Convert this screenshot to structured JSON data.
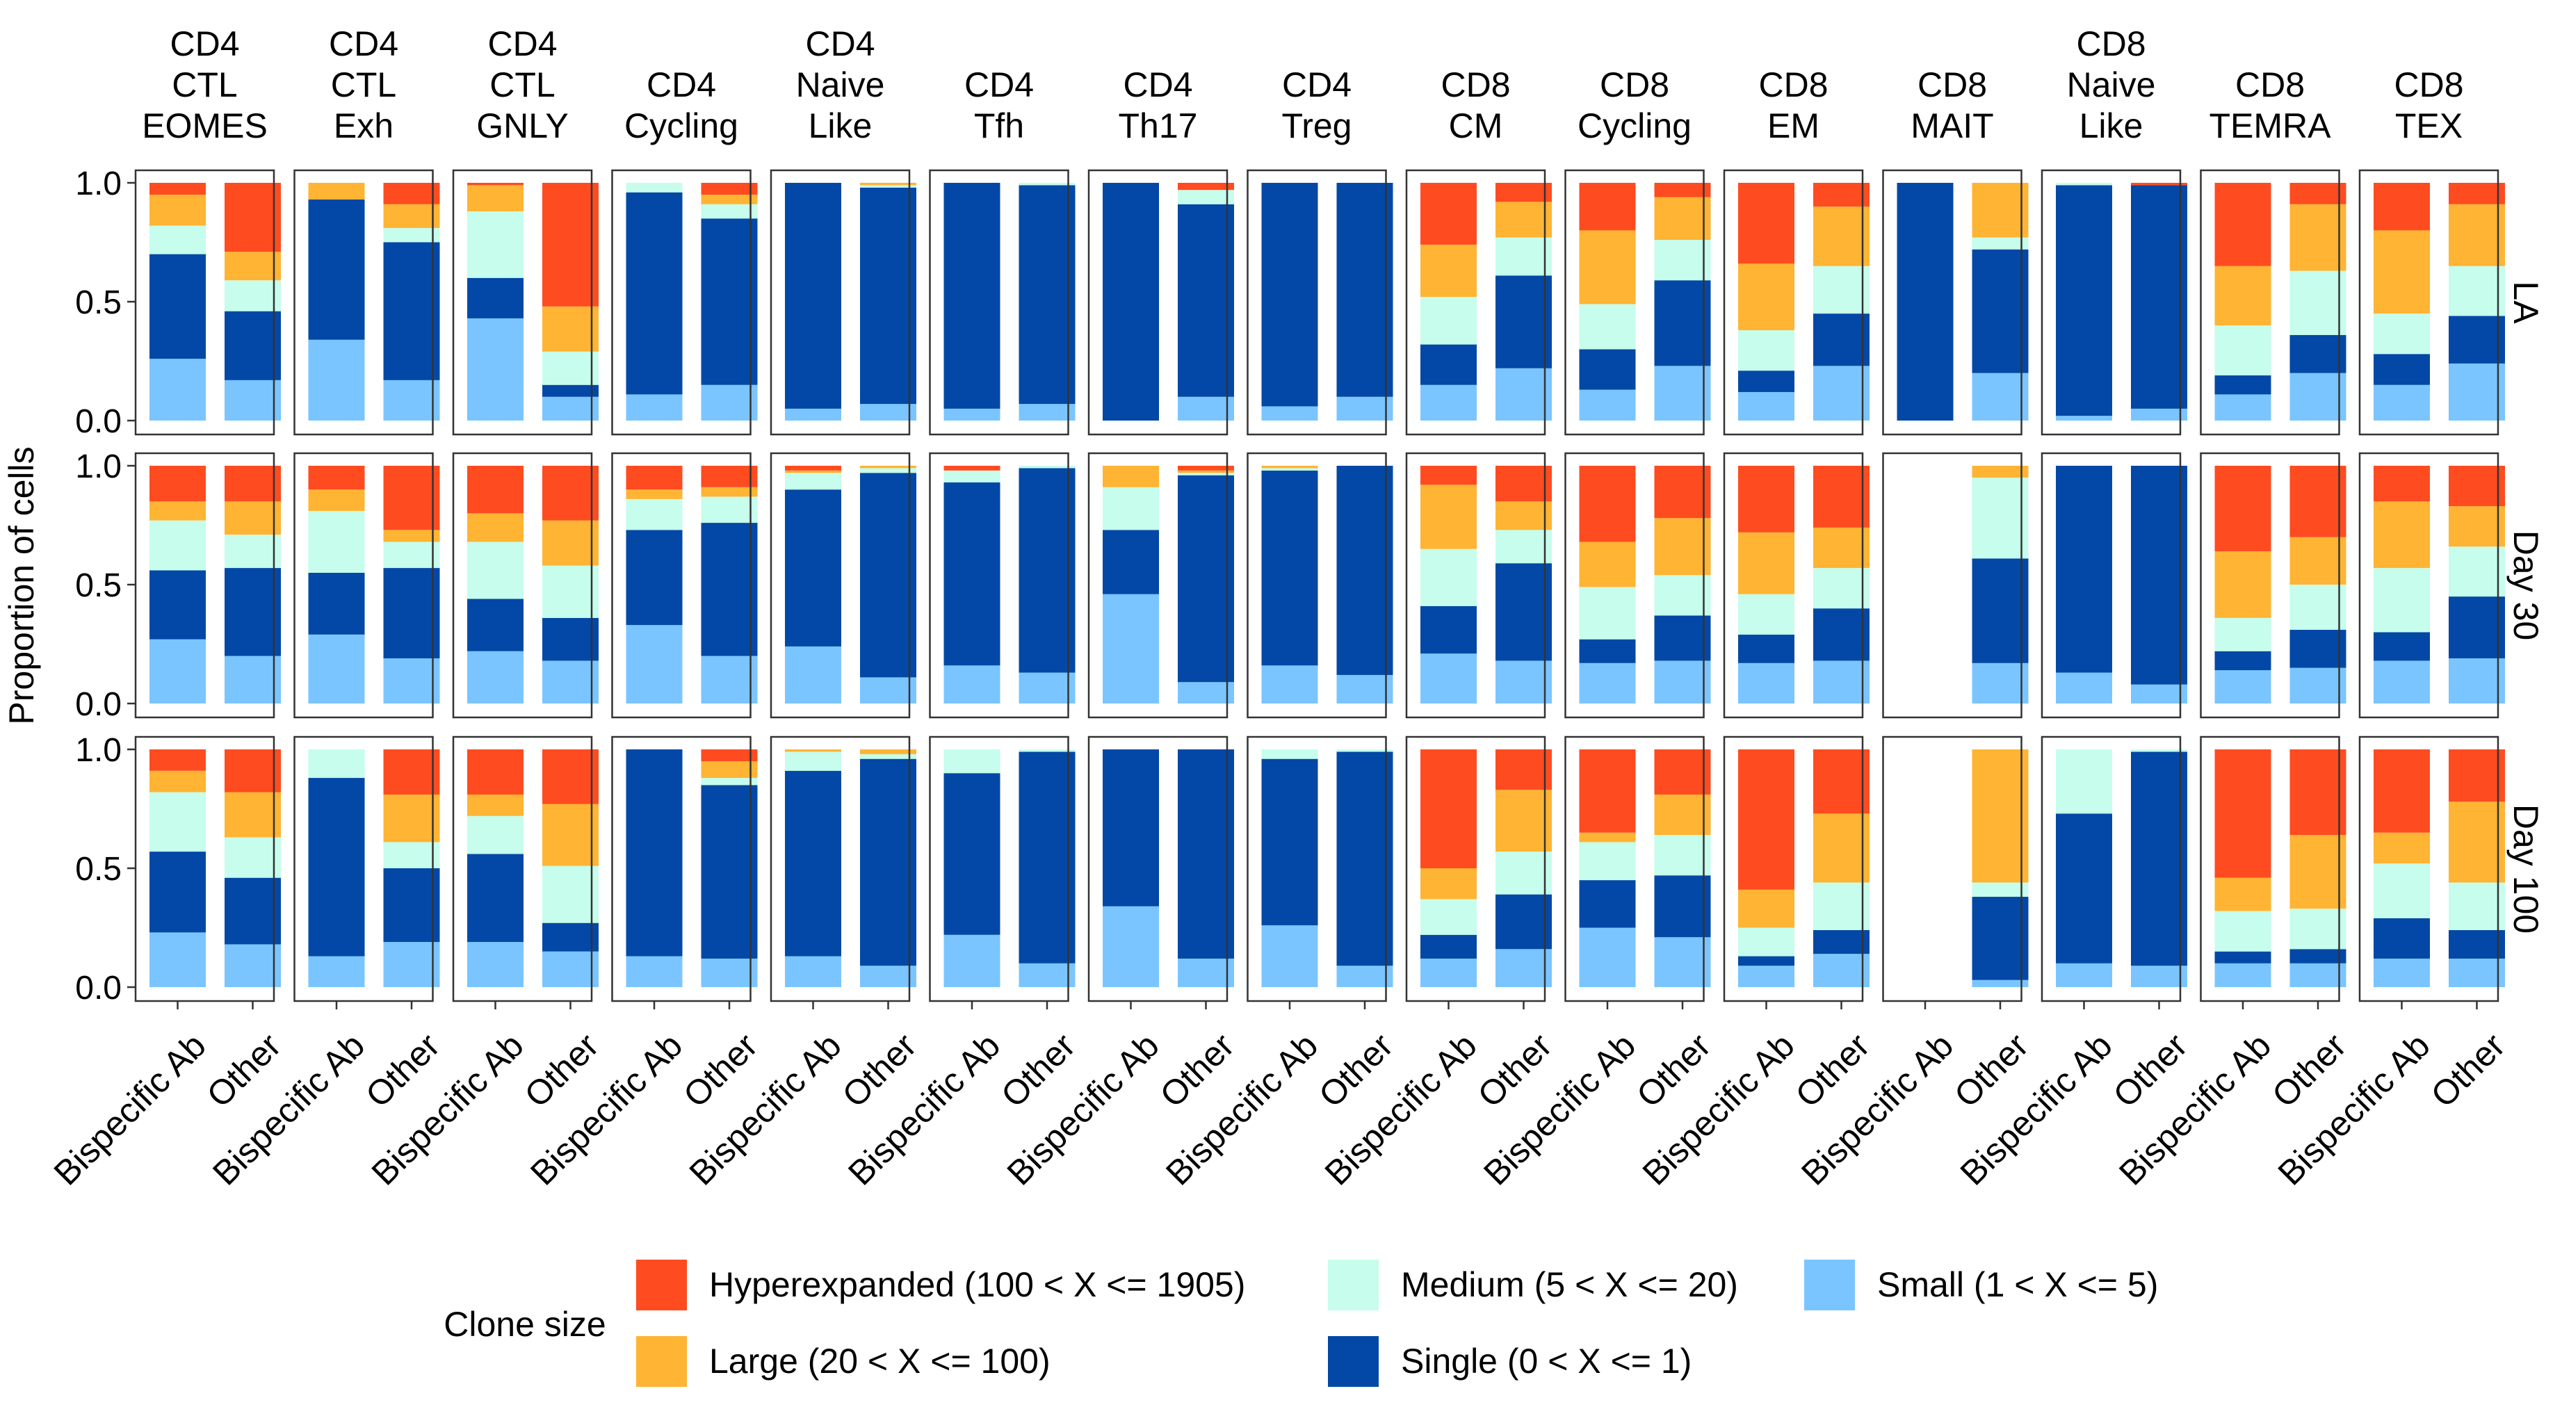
{
  "chart_data": {
    "type": "bar",
    "stacked": true,
    "ylabel": "Proportion of cells",
    "xlabel": "",
    "ylim": [
      0,
      1
    ],
    "y_ticks": [
      "0.0",
      "0.5",
      "1.0"
    ],
    "y_tick_values": [
      0,
      0.5,
      1
    ],
    "categories": [
      "Bispecific Ab",
      "Other"
    ],
    "legend": {
      "title": "Clone size",
      "position": "bottom",
      "items": [
        {
          "key": "hyper",
          "label": "Hyperexpanded (100 < X <= 1905)",
          "color": "#FF4B20"
        },
        {
          "key": "medium",
          "label": "Medium (5 < X <= 20)",
          "color": "#C6FDEC"
        },
        {
          "key": "small",
          "label": "Small (1 < X <= 5)",
          "color": "#7AC5FF"
        },
        {
          "key": "large",
          "label": "Large (20 < X <= 100)",
          "color": "#FFB433"
        },
        {
          "key": "single",
          "label": "Single (0 < X <= 1)",
          "color": "#0348A6"
        }
      ]
    },
    "stack_order_bottom_to_top": [
      "small",
      "single",
      "medium",
      "large",
      "hyper"
    ],
    "columns": [
      [
        "CD4",
        "CTL",
        "EOMES"
      ],
      [
        "CD4",
        "CTL",
        "Exh"
      ],
      [
        "CD4",
        "CTL",
        "GNLY"
      ],
      [
        "CD4",
        "Cycling"
      ],
      [
        "CD4",
        "Naive",
        "Like"
      ],
      [
        "CD4",
        "Tfh"
      ],
      [
        "CD4",
        "Th17"
      ],
      [
        "CD4",
        "Treg"
      ],
      [
        "CD8",
        "CM"
      ],
      [
        "CD8",
        "Cycling"
      ],
      [
        "CD8",
        "EM"
      ],
      [
        "CD8",
        "MAIT"
      ],
      [
        "CD8",
        "Naive",
        "Like"
      ],
      [
        "CD8",
        "TEMRA"
      ],
      [
        "CD8",
        "TEX"
      ]
    ],
    "rows": [
      "LA",
      "Day 30",
      "Day 100"
    ],
    "note": "values: [row][column][bar] = [small, single, medium, large, hyper]",
    "values": [
      [
        [
          [
            0.26,
            0.44,
            0.12,
            0.13,
            0.05
          ],
          [
            0.17,
            0.29,
            0.13,
            0.12,
            0.29
          ]
        ],
        [
          [
            0.34,
            0.59,
            0.0,
            0.07,
            0.0
          ],
          [
            0.17,
            0.58,
            0.06,
            0.1,
            0.09
          ]
        ],
        [
          [
            0.43,
            0.17,
            0.28,
            0.11,
            0.01
          ],
          [
            0.1,
            0.05,
            0.14,
            0.19,
            0.52
          ]
        ],
        [
          [
            0.11,
            0.85,
            0.04,
            0.0,
            0.0
          ],
          [
            0.15,
            0.7,
            0.06,
            0.04,
            0.05
          ]
        ],
        [
          [
            0.05,
            0.95,
            0.0,
            0.0,
            0.0
          ],
          [
            0.07,
            0.91,
            0.01,
            0.01,
            0.0
          ]
        ],
        [
          [
            0.05,
            0.95,
            0.0,
            0.0,
            0.0
          ],
          [
            0.07,
            0.92,
            0.01,
            0.0,
            0.0
          ]
        ],
        [
          [
            0.0,
            1.0,
            0.0,
            0.0,
            0.0
          ],
          [
            0.1,
            0.81,
            0.06,
            0.0,
            0.03
          ]
        ],
        [
          [
            0.06,
            0.94,
            0.0,
            0.0,
            0.0
          ],
          [
            0.1,
            0.9,
            0.0,
            0.0,
            0.0
          ]
        ],
        [
          [
            0.15,
            0.17,
            0.2,
            0.22,
            0.26
          ],
          [
            0.22,
            0.39,
            0.16,
            0.15,
            0.08
          ]
        ],
        [
          [
            0.13,
            0.17,
            0.19,
            0.31,
            0.2
          ],
          [
            0.23,
            0.36,
            0.17,
            0.18,
            0.06
          ]
        ],
        [
          [
            0.12,
            0.09,
            0.17,
            0.28,
            0.34
          ],
          [
            0.23,
            0.22,
            0.2,
            0.25,
            0.1
          ]
        ],
        [
          [
            0.0,
            1.0,
            0.0,
            0.0,
            0.0
          ],
          [
            0.2,
            0.52,
            0.05,
            0.23,
            0.0
          ]
        ],
        [
          [
            0.02,
            0.97,
            0.01,
            0.0,
            0.0
          ],
          [
            0.05,
            0.94,
            0.0,
            0.0,
            0.01
          ]
        ],
        [
          [
            0.11,
            0.08,
            0.21,
            0.25,
            0.35
          ],
          [
            0.2,
            0.16,
            0.27,
            0.28,
            0.09
          ]
        ],
        [
          [
            0.15,
            0.13,
            0.17,
            0.35,
            0.2
          ],
          [
            0.24,
            0.2,
            0.21,
            0.26,
            0.09
          ]
        ]
      ],
      [
        [
          [
            0.27,
            0.29,
            0.21,
            0.08,
            0.15
          ],
          [
            0.2,
            0.37,
            0.14,
            0.14,
            0.15
          ]
        ],
        [
          [
            0.29,
            0.26,
            0.26,
            0.09,
            0.1
          ],
          [
            0.19,
            0.38,
            0.11,
            0.05,
            0.27
          ]
        ],
        [
          [
            0.22,
            0.22,
            0.24,
            0.12,
            0.2
          ],
          [
            0.18,
            0.18,
            0.22,
            0.19,
            0.23
          ]
        ],
        [
          [
            0.33,
            0.4,
            0.13,
            0.04,
            0.1
          ],
          [
            0.2,
            0.56,
            0.11,
            0.04,
            0.09
          ]
        ],
        [
          [
            0.24,
            0.66,
            0.07,
            0.01,
            0.02
          ],
          [
            0.11,
            0.86,
            0.02,
            0.01,
            0.0
          ]
        ],
        [
          [
            0.16,
            0.77,
            0.05,
            0.0,
            0.02
          ],
          [
            0.13,
            0.86,
            0.01,
            0.0,
            0.0
          ]
        ],
        [
          [
            0.46,
            0.27,
            0.18,
            0.09,
            0.0
          ],
          [
            0.09,
            0.87,
            0.01,
            0.01,
            0.02
          ]
        ],
        [
          [
            0.16,
            0.82,
            0.01,
            0.01,
            0.0
          ],
          [
            0.12,
            0.88,
            0.0,
            0.0,
            0.0
          ]
        ],
        [
          [
            0.21,
            0.2,
            0.24,
            0.27,
            0.08
          ],
          [
            0.18,
            0.41,
            0.14,
            0.12,
            0.15
          ]
        ],
        [
          [
            0.17,
            0.1,
            0.22,
            0.19,
            0.32
          ],
          [
            0.18,
            0.19,
            0.17,
            0.24,
            0.22
          ]
        ],
        [
          [
            0.17,
            0.12,
            0.17,
            0.26,
            0.28
          ],
          [
            0.18,
            0.22,
            0.17,
            0.17,
            0.26
          ]
        ],
        [
          [
            0,
            0,
            0,
            0,
            0
          ],
          [
            0.17,
            0.44,
            0.34,
            0.05,
            0.0
          ]
        ],
        [
          [
            0.13,
            0.87,
            0.0,
            0.0,
            0.0
          ],
          [
            0.08,
            0.92,
            0.0,
            0.0,
            0.0
          ]
        ],
        [
          [
            0.14,
            0.08,
            0.14,
            0.28,
            0.36
          ],
          [
            0.15,
            0.16,
            0.19,
            0.2,
            0.3
          ]
        ],
        [
          [
            0.18,
            0.12,
            0.27,
            0.28,
            0.15
          ],
          [
            0.19,
            0.26,
            0.21,
            0.17,
            0.17
          ]
        ]
      ],
      [
        [
          [
            0.23,
            0.34,
            0.25,
            0.09,
            0.09
          ],
          [
            0.18,
            0.28,
            0.17,
            0.19,
            0.18
          ]
        ],
        [
          [
            0.13,
            0.75,
            0.12,
            0.0,
            0.0
          ],
          [
            0.19,
            0.31,
            0.11,
            0.2,
            0.19
          ]
        ],
        [
          [
            0.19,
            0.37,
            0.16,
            0.09,
            0.19
          ],
          [
            0.15,
            0.12,
            0.24,
            0.26,
            0.23
          ]
        ],
        [
          [
            0.13,
            0.87,
            0.0,
            0.0,
            0.0
          ],
          [
            0.12,
            0.73,
            0.03,
            0.07,
            0.05
          ]
        ],
        [
          [
            0.13,
            0.78,
            0.08,
            0.01,
            0.0
          ],
          [
            0.09,
            0.87,
            0.02,
            0.02,
            0.0
          ]
        ],
        [
          [
            0.22,
            0.68,
            0.1,
            0.0,
            0.0
          ],
          [
            0.1,
            0.89,
            0.01,
            0.0,
            0.0
          ]
        ],
        [
          [
            0.34,
            0.66,
            0.0,
            0.0,
            0.0
          ],
          [
            0.12,
            0.88,
            0.0,
            0.0,
            0.0
          ]
        ],
        [
          [
            0.26,
            0.7,
            0.04,
            0.0,
            0.0
          ],
          [
            0.09,
            0.9,
            0.01,
            0.0,
            0.0
          ]
        ],
        [
          [
            0.12,
            0.1,
            0.15,
            0.13,
            0.5
          ],
          [
            0.16,
            0.23,
            0.18,
            0.26,
            0.17
          ]
        ],
        [
          [
            0.25,
            0.2,
            0.16,
            0.04,
            0.35
          ],
          [
            0.21,
            0.26,
            0.17,
            0.17,
            0.19
          ]
        ],
        [
          [
            0.09,
            0.04,
            0.12,
            0.16,
            0.59
          ],
          [
            0.14,
            0.1,
            0.2,
            0.29,
            0.27
          ]
        ],
        [
          [
            0,
            0,
            0,
            0,
            0
          ],
          [
            0.03,
            0.35,
            0.06,
            0.56,
            0.0
          ]
        ],
        [
          [
            0.1,
            0.63,
            0.27,
            0.0,
            0.0
          ],
          [
            0.09,
            0.9,
            0.01,
            0.0,
            0.0
          ]
        ],
        [
          [
            0.1,
            0.05,
            0.17,
            0.14,
            0.54
          ],
          [
            0.1,
            0.06,
            0.17,
            0.31,
            0.36
          ]
        ],
        [
          [
            0.12,
            0.17,
            0.23,
            0.13,
            0.35
          ],
          [
            0.12,
            0.12,
            0.2,
            0.34,
            0.22
          ]
        ]
      ]
    ]
  }
}
